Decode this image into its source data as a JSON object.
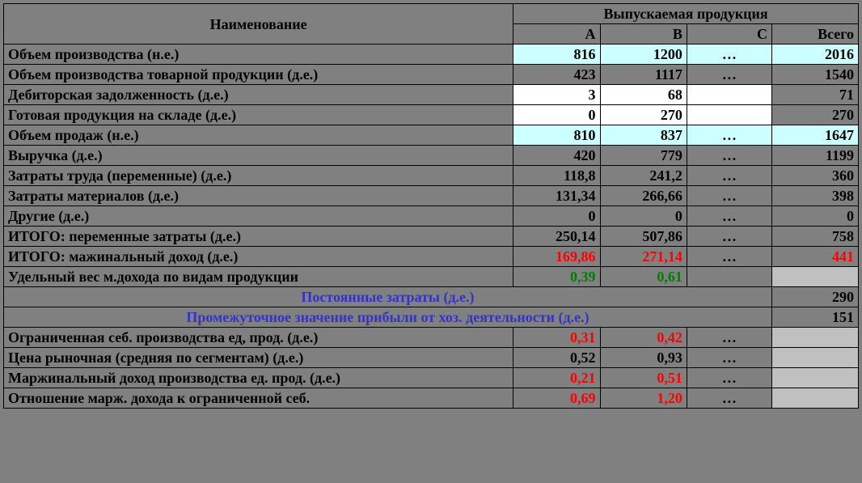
{
  "header": {
    "name_col": "Наименование",
    "products_group": "Выпускаемая продукция",
    "col_a": "А",
    "col_b": "В",
    "col_c": "С",
    "col_total": "Всего"
  },
  "ellipsis": "…",
  "rows": {
    "r1": {
      "label": "Объем производства (н.е.)",
      "a": "816",
      "b": "1200",
      "total": "2016"
    },
    "r2": {
      "label": "Объем производства товарной продукции (д.е.)",
      "a": "423",
      "b": "1117",
      "total": "1540"
    },
    "r3": {
      "label": "Дебиторская задолженность (д.е.)",
      "a": "3",
      "b": "68",
      "total": "71"
    },
    "r4": {
      "label": "Готовая продукция на складе (д.е.)",
      "a": "0",
      "b": "270",
      "total": "270"
    },
    "r5": {
      "label": "Объем продаж (н.е.)",
      "a": "810",
      "b": "837",
      "total": "1647"
    },
    "r6": {
      "label": "Выручка (д.е.)",
      "a": "420",
      "b": "779",
      "total": "1199"
    },
    "r7": {
      "label": "Затраты труда (переменные) (д.е.)",
      "a": "118,8",
      "b": "241,2",
      "total": "360"
    },
    "r8": {
      "label": "Затраты материалов (д.е.)",
      "a": "131,34",
      "b": "266,66",
      "total": "398"
    },
    "r9": {
      "label": "Другие (д.е.)",
      "a": "0",
      "b": "0",
      "total": "0"
    },
    "r10": {
      "label": "ИТОГО: переменные затраты (д.е.)",
      "a": "250,14",
      "b": "507,86",
      "total": "758"
    },
    "r11": {
      "label": "ИТОГО: мажинальный доход (д.е.)",
      "a": "169,86",
      "b": "271,14",
      "total": "441"
    },
    "r12": {
      "label": "Удельный вес м.дохода по видам продукции",
      "a": "0,39",
      "b": "0,61"
    },
    "r13": {
      "label": "Постоянные затраты (д.е.)",
      "total": "290"
    },
    "r14": {
      "label": "Промежуточное значение прибыли от хоз. деятельности (д.е.)",
      "total": "151"
    },
    "r15": {
      "label": "Ограниченная себ. производства ед, прод. (д.е.)",
      "a": "0,31",
      "b": "0,42"
    },
    "r16": {
      "label": "Цена рыночная (средняя по сегментам) (д.е.)",
      "a": "0,52",
      "b": "0,93"
    },
    "r17": {
      "label": "Маржинальный доход производства ед. прод. (д.е.)",
      "a": "0,21",
      "b": "0,51"
    },
    "r18": {
      "label": "Отношение марж. дохода к ограниченной себ.",
      "a": "0,69",
      "b": "1,20"
    }
  },
  "colors": {
    "cyan_bg": "#ccffff",
    "white_bg": "#ffffff",
    "grey_bg": "#808080",
    "light_grey_bg": "#c0c0c0",
    "red_text": "#ff0000",
    "green_text": "#008000",
    "blue_text": "#3333cc",
    "black": "#000000"
  }
}
